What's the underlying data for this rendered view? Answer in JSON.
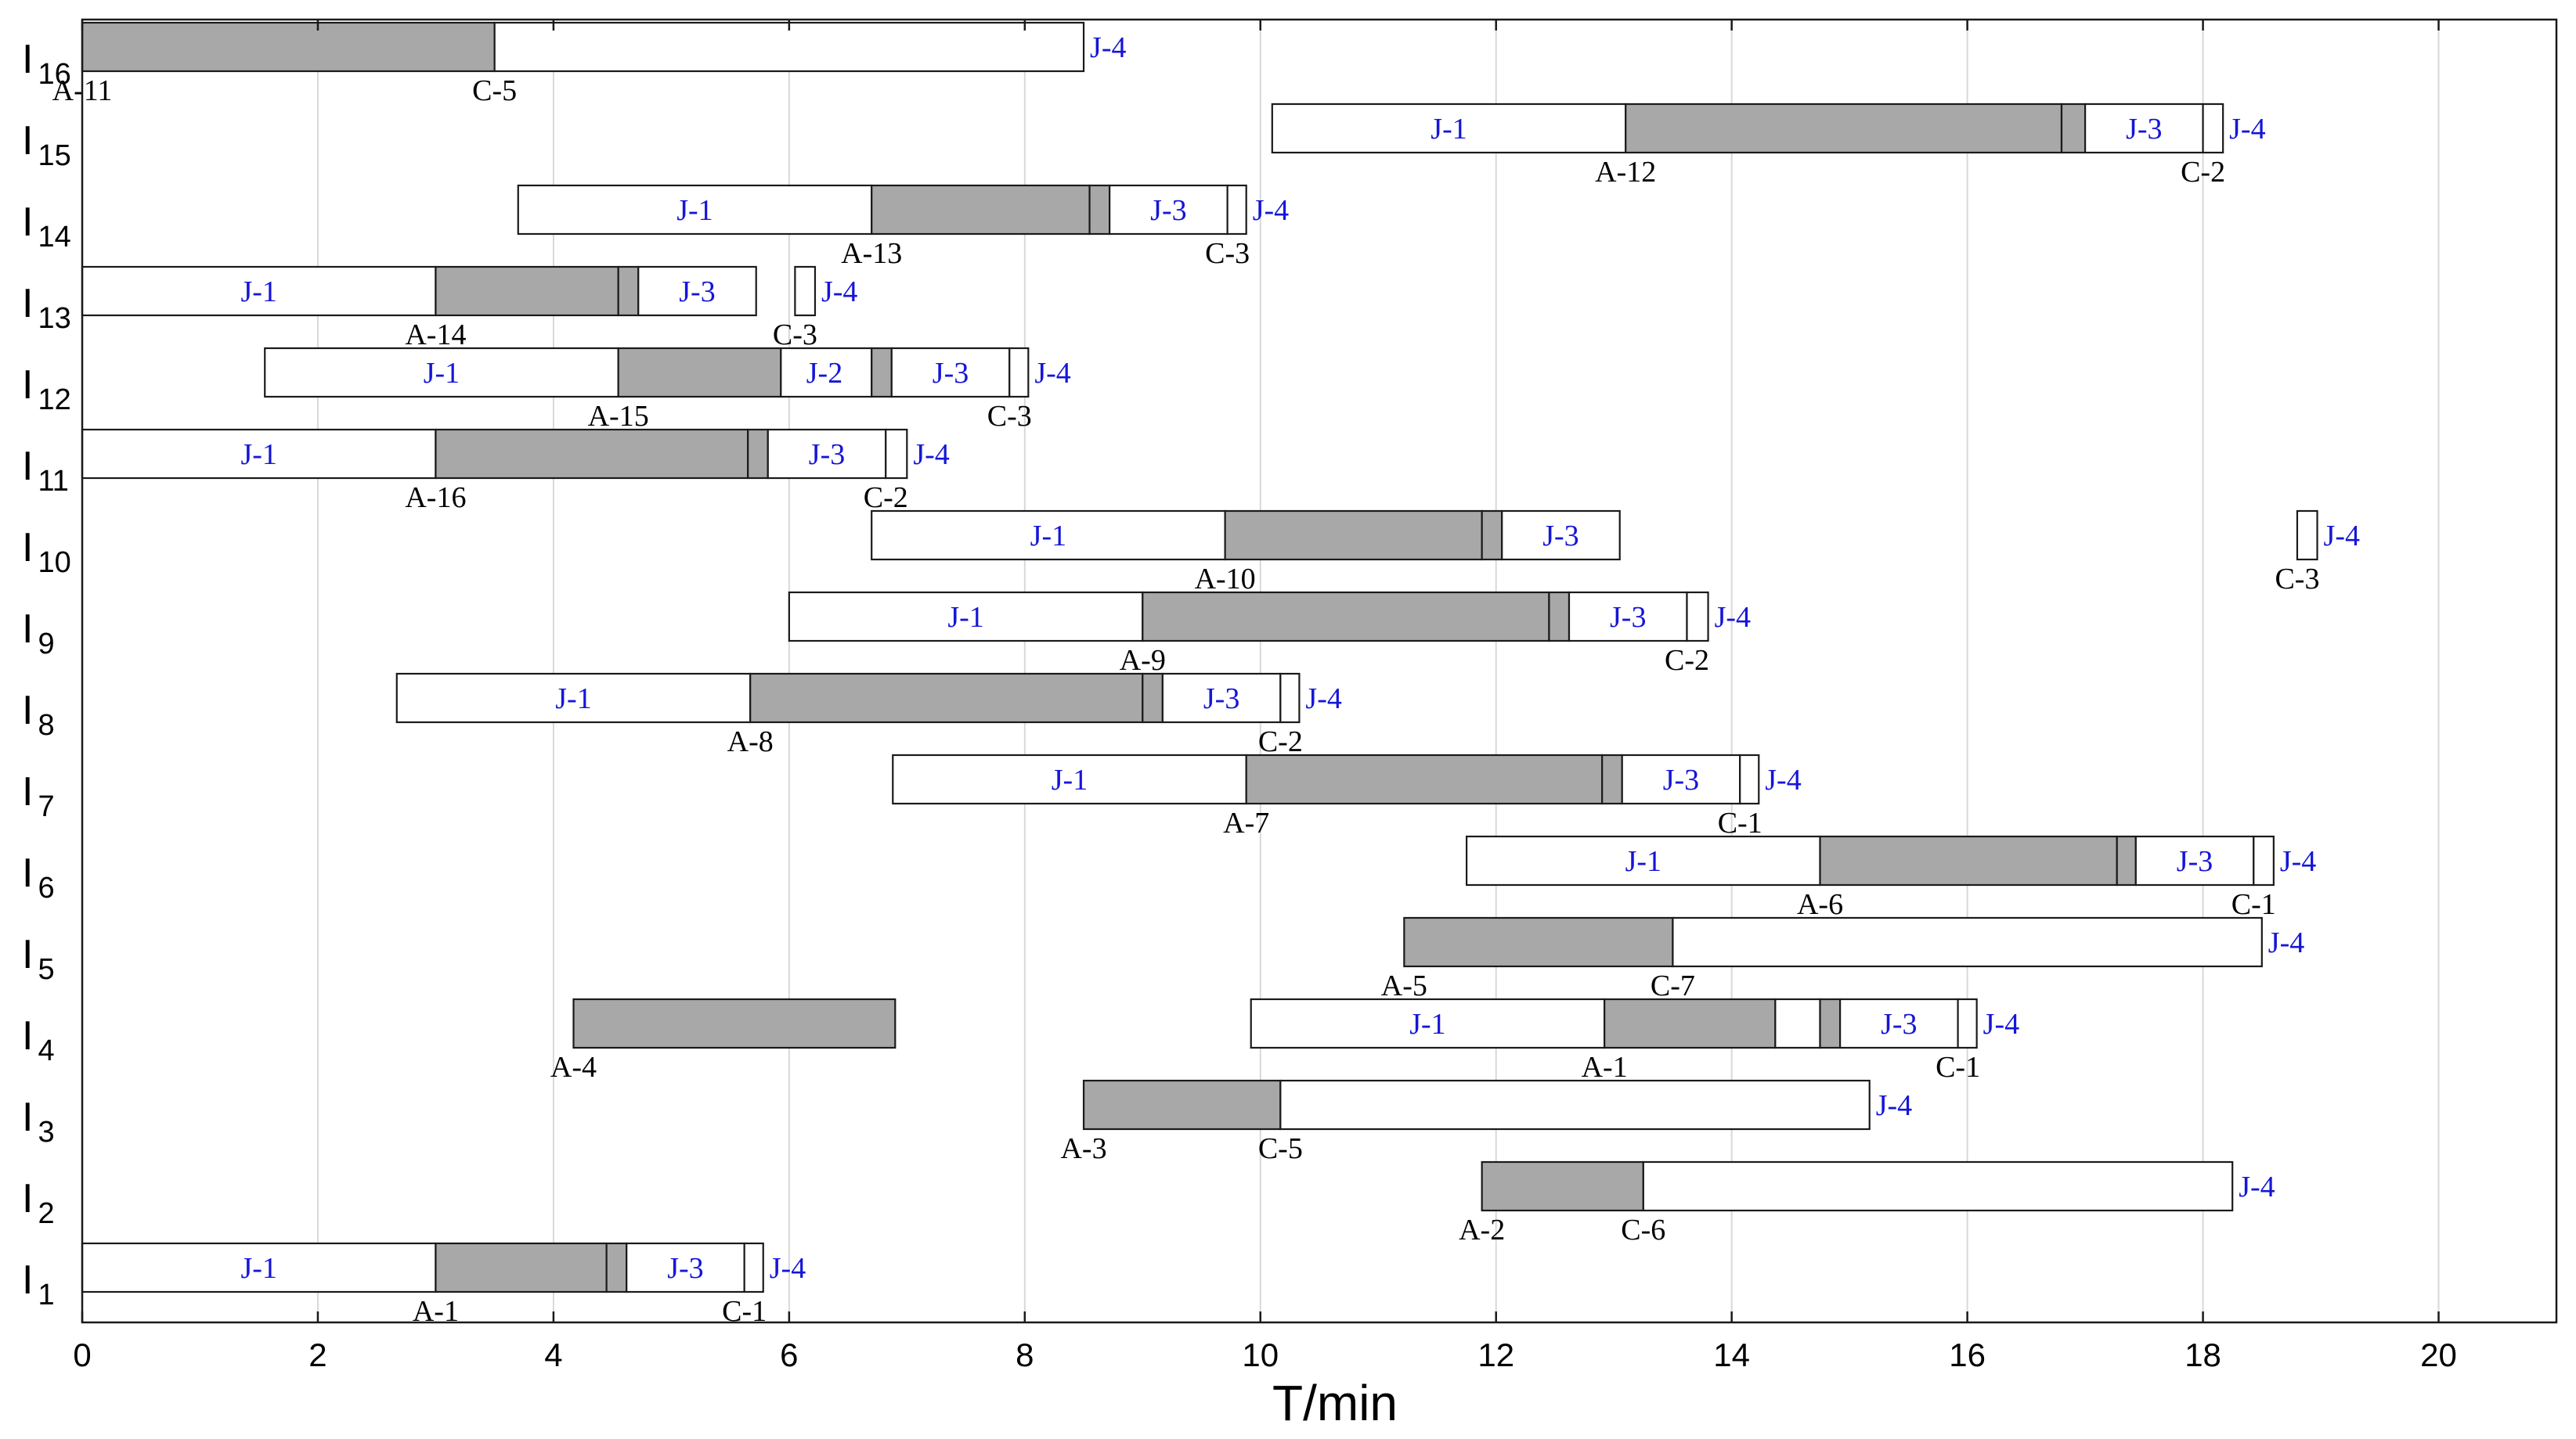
{
  "chart_data": {
    "type": "gantt",
    "xlabel": "T/min",
    "xlim": [
      0,
      21
    ],
    "xticks": [
      0,
      2,
      4,
      6,
      8,
      10,
      12,
      14,
      16,
      18,
      20
    ],
    "grid": "vertical",
    "colors": {
      "busy": "#a7a8a7",
      "idle": "#ffffff",
      "edge": "#1a1a1a",
      "job_text": "#1515d8",
      "grid": "#d8d8d8"
    },
    "rows": [
      {
        "label": "I",
        "sub": "16",
        "segments": [
          {
            "start": 0,
            "end": 3.5,
            "fill": "busy"
          },
          {
            "start": 3.5,
            "end": 8.5,
            "fill": "idle"
          }
        ],
        "jobs": [
          {
            "text": "J-4",
            "at": 8.5,
            "pos": "right"
          }
        ],
        "points": [
          {
            "text": "A-11",
            "at": 0
          },
          {
            "text": "C-5",
            "at": 3.5
          }
        ]
      },
      {
        "label": "I",
        "sub": "15",
        "segments": [
          {
            "start": 10.1,
            "end": 13.1,
            "fill": "idle"
          },
          {
            "start": 13.1,
            "end": 16.8,
            "fill": "busy"
          },
          {
            "start": 16.8,
            "end": 17.0,
            "fill": "busy"
          },
          {
            "start": 17.0,
            "end": 18.0,
            "fill": "idle"
          },
          {
            "start": 18.0,
            "end": 18.17,
            "fill": "idle"
          }
        ],
        "jobs": [
          {
            "text": "J-1",
            "at": 11.6
          },
          {
            "text": "J-3",
            "at": 17.5
          },
          {
            "text": "J-4",
            "at": 18.17,
            "pos": "right"
          }
        ],
        "points": [
          {
            "text": "A-12",
            "at": 13.1
          },
          {
            "text": "C-2",
            "at": 18.0
          }
        ]
      },
      {
        "label": "I",
        "sub": "14",
        "segments": [
          {
            "start": 3.7,
            "end": 6.7,
            "fill": "idle"
          },
          {
            "start": 6.7,
            "end": 8.55,
            "fill": "busy"
          },
          {
            "start": 8.55,
            "end": 8.72,
            "fill": "busy"
          },
          {
            "start": 8.72,
            "end": 9.72,
            "fill": "idle"
          },
          {
            "start": 9.72,
            "end": 9.88,
            "fill": "idle"
          }
        ],
        "jobs": [
          {
            "text": "J-1",
            "at": 5.2
          },
          {
            "text": "J-3",
            "at": 9.22
          },
          {
            "text": "J-4",
            "at": 9.88,
            "pos": "right"
          }
        ],
        "points": [
          {
            "text": "A-13",
            "at": 6.7
          },
          {
            "text": "C-3",
            "at": 9.72
          }
        ]
      },
      {
        "label": "I",
        "sub": "13",
        "segments": [
          {
            "start": 0,
            "end": 3.0,
            "fill": "idle"
          },
          {
            "start": 3.0,
            "end": 4.55,
            "fill": "busy"
          },
          {
            "start": 4.55,
            "end": 4.72,
            "fill": "busy"
          },
          {
            "start": 4.72,
            "end": 5.72,
            "fill": "idle"
          },
          {
            "start": 6.05,
            "end": 6.22,
            "fill": "idle"
          }
        ],
        "jobs": [
          {
            "text": "J-1",
            "at": 1.5
          },
          {
            "text": "J-3",
            "at": 5.22
          },
          {
            "text": "J-4",
            "at": 6.22,
            "pos": "right"
          }
        ],
        "points": [
          {
            "text": "A-14",
            "at": 3.0
          },
          {
            "text": "C-3",
            "at": 6.05
          }
        ]
      },
      {
        "label": "I",
        "sub": "12",
        "segments": [
          {
            "start": 1.55,
            "end": 4.55,
            "fill": "idle"
          },
          {
            "start": 4.55,
            "end": 5.93,
            "fill": "busy"
          },
          {
            "start": 5.93,
            "end": 6.7,
            "fill": "idle"
          },
          {
            "start": 6.7,
            "end": 6.87,
            "fill": "busy"
          },
          {
            "start": 6.87,
            "end": 7.87,
            "fill": "idle"
          },
          {
            "start": 7.87,
            "end": 8.03,
            "fill": "idle"
          }
        ],
        "jobs": [
          {
            "text": "J-1",
            "at": 3.05
          },
          {
            "text": "J-2",
            "at": 6.3
          },
          {
            "text": "J-3",
            "at": 7.37
          },
          {
            "text": "J-4",
            "at": 8.03,
            "pos": "right"
          }
        ],
        "points": [
          {
            "text": "A-15",
            "at": 4.55
          },
          {
            "text": "C-3",
            "at": 7.87
          }
        ]
      },
      {
        "label": "I",
        "sub": "11",
        "segments": [
          {
            "start": 0,
            "end": 3.0,
            "fill": "idle"
          },
          {
            "start": 3.0,
            "end": 5.65,
            "fill": "busy"
          },
          {
            "start": 5.65,
            "end": 5.82,
            "fill": "busy"
          },
          {
            "start": 5.82,
            "end": 6.82,
            "fill": "idle"
          },
          {
            "start": 6.82,
            "end": 7.0,
            "fill": "idle"
          }
        ],
        "jobs": [
          {
            "text": "J-1",
            "at": 1.5
          },
          {
            "text": "J-3",
            "at": 6.32
          },
          {
            "text": "J-4",
            "at": 7.0,
            "pos": "right"
          }
        ],
        "points": [
          {
            "text": "A-16",
            "at": 3.0
          },
          {
            "text": "C-2",
            "at": 6.82
          }
        ]
      },
      {
        "label": "I",
        "sub": "10",
        "segments": [
          {
            "start": 6.7,
            "end": 9.7,
            "fill": "idle"
          },
          {
            "start": 9.7,
            "end": 11.88,
            "fill": "busy"
          },
          {
            "start": 11.88,
            "end": 12.05,
            "fill": "busy"
          },
          {
            "start": 12.05,
            "end": 13.05,
            "fill": "idle"
          },
          {
            "start": 18.8,
            "end": 18.97,
            "fill": "idle"
          }
        ],
        "jobs": [
          {
            "text": "J-1",
            "at": 8.2
          },
          {
            "text": "J-3",
            "at": 12.55
          },
          {
            "text": "J-4",
            "at": 18.97,
            "pos": "right"
          }
        ],
        "points": [
          {
            "text": "A-10",
            "at": 9.7
          },
          {
            "text": "C-3",
            "at": 18.8
          }
        ]
      },
      {
        "label": "I",
        "sub": "9",
        "segments": [
          {
            "start": 6.0,
            "end": 9.0,
            "fill": "idle"
          },
          {
            "start": 9.0,
            "end": 12.45,
            "fill": "busy"
          },
          {
            "start": 12.45,
            "end": 12.62,
            "fill": "busy"
          },
          {
            "start": 12.62,
            "end": 13.62,
            "fill": "idle"
          },
          {
            "start": 13.62,
            "end": 13.8,
            "fill": "idle"
          }
        ],
        "jobs": [
          {
            "text": "J-1",
            "at": 7.5
          },
          {
            "text": "J-3",
            "at": 13.12
          },
          {
            "text": "J-4",
            "at": 13.8,
            "pos": "right"
          }
        ],
        "points": [
          {
            "text": "A-9",
            "at": 9.0
          },
          {
            "text": "C-2",
            "at": 13.62
          }
        ]
      },
      {
        "label": "I",
        "sub": "8",
        "segments": [
          {
            "start": 2.67,
            "end": 5.67,
            "fill": "idle"
          },
          {
            "start": 5.67,
            "end": 9.0,
            "fill": "busy"
          },
          {
            "start": 9.0,
            "end": 9.17,
            "fill": "busy"
          },
          {
            "start": 9.17,
            "end": 10.17,
            "fill": "idle"
          },
          {
            "start": 10.17,
            "end": 10.33,
            "fill": "idle"
          }
        ],
        "jobs": [
          {
            "text": "J-1",
            "at": 4.17
          },
          {
            "text": "J-3",
            "at": 9.67
          },
          {
            "text": "J-4",
            "at": 10.33,
            "pos": "right"
          }
        ],
        "points": [
          {
            "text": "A-8",
            "at": 5.67
          },
          {
            "text": "C-2",
            "at": 10.17
          }
        ]
      },
      {
        "label": "I",
        "sub": "7",
        "segments": [
          {
            "start": 6.88,
            "end": 9.88,
            "fill": "idle"
          },
          {
            "start": 9.88,
            "end": 12.9,
            "fill": "busy"
          },
          {
            "start": 12.9,
            "end": 13.07,
            "fill": "busy"
          },
          {
            "start": 13.07,
            "end": 14.07,
            "fill": "idle"
          },
          {
            "start": 14.07,
            "end": 14.23,
            "fill": "idle"
          }
        ],
        "jobs": [
          {
            "text": "J-1",
            "at": 8.38
          },
          {
            "text": "J-3",
            "at": 13.57
          },
          {
            "text": "J-4",
            "at": 14.23,
            "pos": "right"
          }
        ],
        "points": [
          {
            "text": "A-7",
            "at": 9.88
          },
          {
            "text": "C-1",
            "at": 14.07
          }
        ]
      },
      {
        "label": "I",
        "sub": "6",
        "segments": [
          {
            "start": 11.75,
            "end": 14.75,
            "fill": "idle"
          },
          {
            "start": 14.75,
            "end": 17.27,
            "fill": "busy"
          },
          {
            "start": 17.27,
            "end": 17.43,
            "fill": "busy"
          },
          {
            "start": 17.43,
            "end": 18.43,
            "fill": "idle"
          },
          {
            "start": 18.43,
            "end": 18.6,
            "fill": "idle"
          }
        ],
        "jobs": [
          {
            "text": "J-1",
            "at": 13.25
          },
          {
            "text": "J-3",
            "at": 17.93
          },
          {
            "text": "J-4",
            "at": 18.6,
            "pos": "right"
          }
        ],
        "points": [
          {
            "text": "A-6",
            "at": 14.75
          },
          {
            "text": "C-1",
            "at": 18.43
          }
        ]
      },
      {
        "label": "I",
        "sub": "5",
        "segments": [
          {
            "start": 11.22,
            "end": 13.5,
            "fill": "busy"
          },
          {
            "start": 13.5,
            "end": 18.5,
            "fill": "idle"
          }
        ],
        "jobs": [
          {
            "text": "J-4",
            "at": 18.5,
            "pos": "right"
          }
        ],
        "points": [
          {
            "text": "A-5",
            "at": 11.22
          },
          {
            "text": "C-7",
            "at": 13.5
          }
        ]
      },
      {
        "label": "I",
        "sub": "4",
        "segments": [
          {
            "start": 4.17,
            "end": 6.9,
            "fill": "busy"
          },
          {
            "start": 9.92,
            "end": 12.92,
            "fill": "idle"
          },
          {
            "start": 12.92,
            "end": 14.37,
            "fill": "busy"
          },
          {
            "start": 14.37,
            "end": 14.75,
            "fill": "idle"
          },
          {
            "start": 14.75,
            "end": 14.92,
            "fill": "busy"
          },
          {
            "start": 14.92,
            "end": 15.92,
            "fill": "idle"
          },
          {
            "start": 15.92,
            "end": 16.08,
            "fill": "idle"
          }
        ],
        "jobs": [
          {
            "text": "J-1",
            "at": 11.42
          },
          {
            "text": "J-3",
            "at": 15.42
          },
          {
            "text": "J-4",
            "at": 16.08,
            "pos": "right"
          }
        ],
        "points": [
          {
            "text": "A-4",
            "at": 4.17
          },
          {
            "text": "A-1",
            "at": 12.92
          },
          {
            "text": "C-1",
            "at": 15.92
          }
        ]
      },
      {
        "label": "I",
        "sub": "3",
        "segments": [
          {
            "start": 8.5,
            "end": 10.17,
            "fill": "busy"
          },
          {
            "start": 10.17,
            "end": 15.17,
            "fill": "idle"
          }
        ],
        "jobs": [
          {
            "text": "J-4",
            "at": 15.17,
            "pos": "right"
          }
        ],
        "points": [
          {
            "text": "A-3",
            "at": 8.5
          },
          {
            "text": "C-5",
            "at": 10.17
          }
        ]
      },
      {
        "label": "I",
        "sub": "2",
        "segments": [
          {
            "start": 11.88,
            "end": 13.25,
            "fill": "busy"
          },
          {
            "start": 13.25,
            "end": 18.25,
            "fill": "idle"
          }
        ],
        "jobs": [
          {
            "text": "J-4",
            "at": 18.25,
            "pos": "right"
          }
        ],
        "points": [
          {
            "text": "A-2",
            "at": 11.88
          },
          {
            "text": "C-6",
            "at": 13.25
          }
        ]
      },
      {
        "label": "I",
        "sub": "1",
        "segments": [
          {
            "start": 0,
            "end": 3.0,
            "fill": "idle"
          },
          {
            "start": 3.0,
            "end": 4.45,
            "fill": "busy"
          },
          {
            "start": 4.45,
            "end": 4.62,
            "fill": "busy"
          },
          {
            "start": 4.62,
            "end": 5.62,
            "fill": "idle"
          },
          {
            "start": 5.62,
            "end": 5.78,
            "fill": "idle"
          }
        ],
        "jobs": [
          {
            "text": "J-1",
            "at": 1.5
          },
          {
            "text": "J-3",
            "at": 5.12
          },
          {
            "text": "J-4",
            "at": 5.78,
            "pos": "right"
          }
        ],
        "points": [
          {
            "text": "A-1",
            "at": 3.0
          },
          {
            "text": "C-1",
            "at": 5.62
          }
        ]
      }
    ]
  }
}
